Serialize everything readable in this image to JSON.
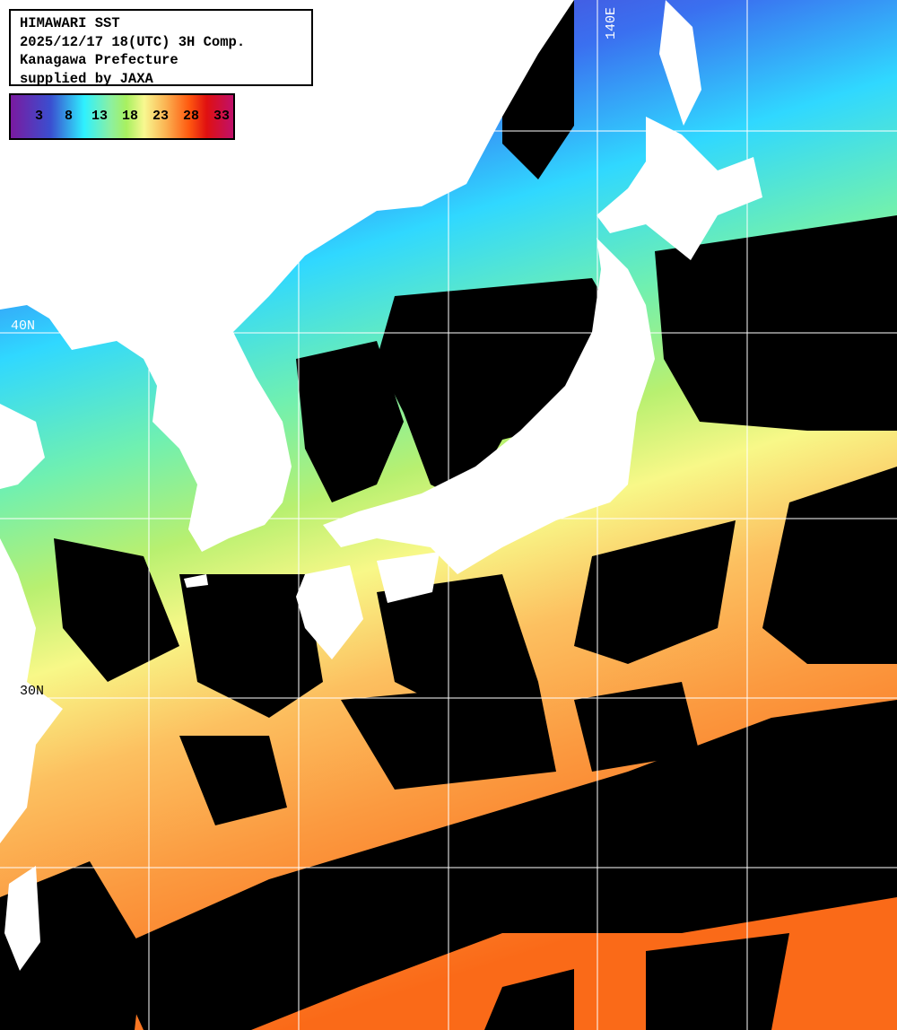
{
  "info": {
    "title": "HIMAWARI SST",
    "datetime": "2025/12/17 18(UTC) 3H Comp.",
    "agency": "Kanagawa Prefecture",
    "supplier": "supplied by JAXA"
  },
  "legend": {
    "unit_values": [
      "3",
      "8",
      "13",
      "18",
      "23",
      "28",
      "33"
    ],
    "colors": [
      "#7a1aa0",
      "#3a4fd0",
      "#2ff0ff",
      "#8cf0a0",
      "#f8f890",
      "#fbb050",
      "#ff5a10",
      "#e01010",
      "#c0106a"
    ]
  },
  "grid": {
    "labels": {
      "lat_40": "40N",
      "lat_30": "30N",
      "lon_140": "140E"
    }
  },
  "colors": {
    "land": "#ffffff",
    "cloud": "#000000",
    "grid": "#ffffff"
  }
}
